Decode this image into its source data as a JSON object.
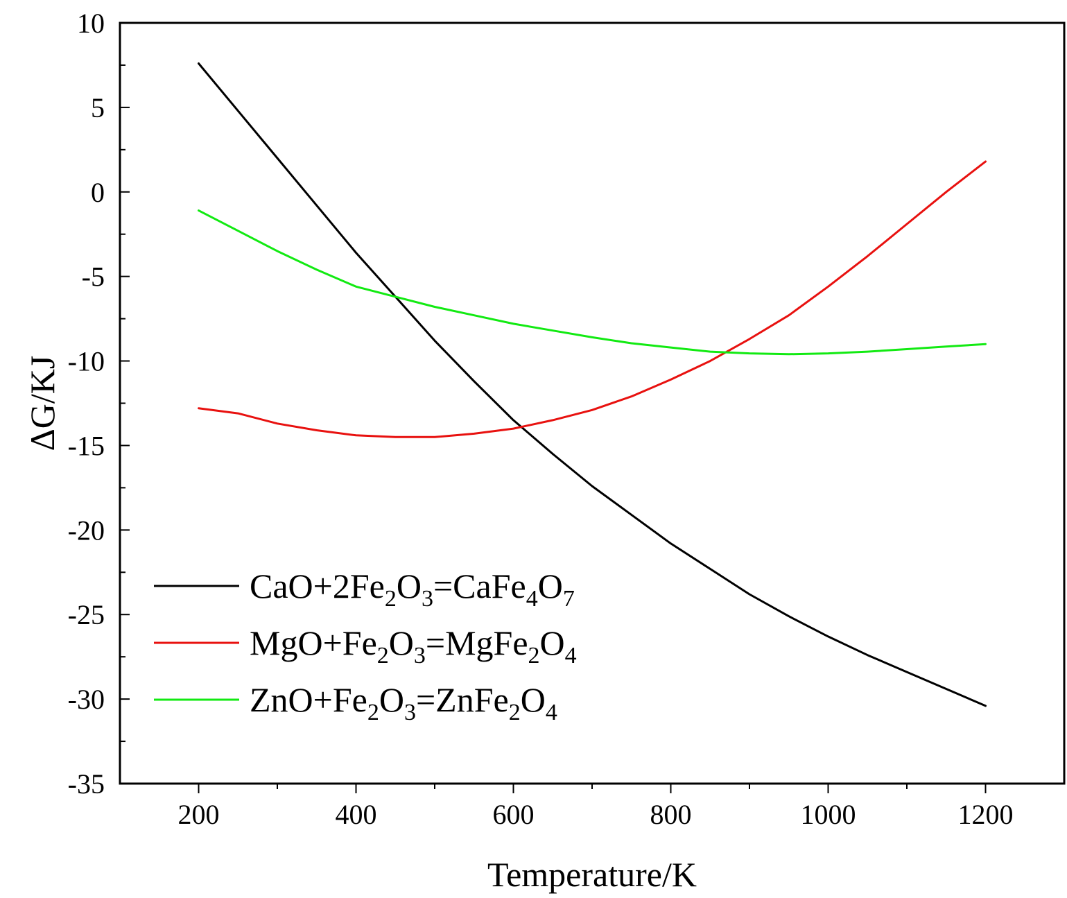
{
  "chart_data": {
    "type": "line",
    "xlabel": "Temperature/K",
    "ylabel": "ΔG/KJ",
    "xlim": [
      100,
      1300
    ],
    "ylim": [
      -35,
      10
    ],
    "xticks": [
      200,
      400,
      600,
      800,
      1000,
      1200
    ],
    "yticks": [
      10,
      5,
      0,
      -5,
      -10,
      -15,
      -20,
      -25,
      -30,
      -35
    ],
    "grid": false,
    "legend_position": "lower-left",
    "series": [
      {
        "name": "CaO+2Fe2O3=CaFe4O7",
        "legend": [
          {
            "t": "CaO+2Fe"
          },
          {
            "t": "2",
            "sub": true
          },
          {
            "t": "O"
          },
          {
            "t": "3",
            "sub": true
          },
          {
            "t": "=CaFe"
          },
          {
            "t": "4",
            "sub": true
          },
          {
            "t": "O"
          },
          {
            "t": "7",
            "sub": true
          }
        ],
        "color": "#000000",
        "x": [
          200,
          250,
          300,
          350,
          400,
          450,
          500,
          550,
          600,
          650,
          700,
          750,
          800,
          850,
          900,
          950,
          1000,
          1050,
          1100,
          1150,
          1200
        ],
        "y": [
          7.6,
          4.8,
          2.0,
          -0.8,
          -3.6,
          -6.2,
          -8.8,
          -11.2,
          -13.5,
          -15.5,
          -17.4,
          -19.1,
          -20.8,
          -22.3,
          -23.8,
          -25.1,
          -26.3,
          -27.4,
          -28.4,
          -29.4,
          -30.4
        ]
      },
      {
        "name": "MgO+Fe2O3=MgFe2O4",
        "legend": [
          {
            "t": "MgO+Fe"
          },
          {
            "t": "2",
            "sub": true
          },
          {
            "t": "O"
          },
          {
            "t": "3",
            "sub": true
          },
          {
            "t": "=MgFe"
          },
          {
            "t": "2",
            "sub": true
          },
          {
            "t": "O"
          },
          {
            "t": "4",
            "sub": true
          }
        ],
        "color": "#e8110f",
        "x": [
          200,
          250,
          300,
          350,
          400,
          450,
          500,
          550,
          600,
          650,
          700,
          750,
          800,
          850,
          900,
          950,
          1000,
          1050,
          1100,
          1150,
          1200
        ],
        "y": [
          -12.8,
          -13.1,
          -13.7,
          -14.1,
          -14.4,
          -14.5,
          -14.5,
          -14.3,
          -14.0,
          -13.5,
          -12.9,
          -12.1,
          -11.1,
          -10.0,
          -8.7,
          -7.3,
          -5.6,
          -3.8,
          -1.9,
          0.0,
          1.8
        ]
      },
      {
        "name": "ZnO+Fe2O3=ZnFe2O4",
        "legend": [
          {
            "t": "ZnO+Fe"
          },
          {
            "t": "2",
            "sub": true
          },
          {
            "t": "O"
          },
          {
            "t": "3",
            "sub": true
          },
          {
            "t": "=ZnFe"
          },
          {
            "t": "2",
            "sub": true
          },
          {
            "t": "O"
          },
          {
            "t": "4",
            "sub": true
          }
        ],
        "color": "#12ea12",
        "x": [
          200,
          250,
          300,
          350,
          400,
          450,
          500,
          550,
          600,
          650,
          700,
          750,
          800,
          850,
          900,
          950,
          1000,
          1050,
          1100,
          1150,
          1200
        ],
        "y": [
          -1.1,
          -2.3,
          -3.5,
          -4.6,
          -5.6,
          -6.2,
          -6.8,
          -7.3,
          -7.8,
          -8.2,
          -8.6,
          -8.95,
          -9.2,
          -9.45,
          -9.55,
          -9.6,
          -9.55,
          -9.45,
          -9.3,
          -9.15,
          -9.0
        ]
      }
    ]
  }
}
